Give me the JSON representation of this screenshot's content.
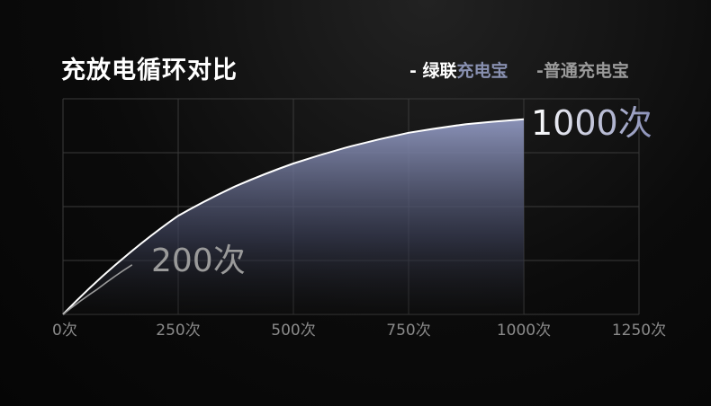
{
  "title": "充放电循环对比",
  "legend": [
    {
      "marker": "-",
      "name_a": "绿联",
      "name_b": "充电宝",
      "color": "#ffffff"
    },
    {
      "marker": "-",
      "name": "普通充电宝",
      "color": "#9a9a9a"
    }
  ],
  "chart_data": {
    "type": "area",
    "title": "充放电循环对比",
    "x_ticks": [
      "0次",
      "250次",
      "500次",
      "750次",
      "1000次",
      "1250次"
    ],
    "xlim": [
      0,
      1250
    ],
    "ylim": [
      0,
      4
    ],
    "grid": true,
    "legend_placement": "top-right",
    "series": [
      {
        "name": "绿联充电宝",
        "color": "#ffffff",
        "fill": "#8890b8",
        "x": [
          0,
          125,
          250,
          375,
          500,
          625,
          750,
          875,
          1000
        ],
        "y": [
          0,
          1.0,
          1.83,
          2.38,
          2.8,
          3.12,
          3.37,
          3.53,
          3.62
        ]
      },
      {
        "name": "普通充电宝",
        "color": "#9a9a9a",
        "x": [
          0,
          75,
          150
        ],
        "y": [
          0,
          0.47,
          0.92
        ]
      }
    ],
    "annotations": [
      {
        "text": "1000次",
        "x": 1000
      },
      {
        "text": "200次",
        "x": 200
      }
    ]
  }
}
